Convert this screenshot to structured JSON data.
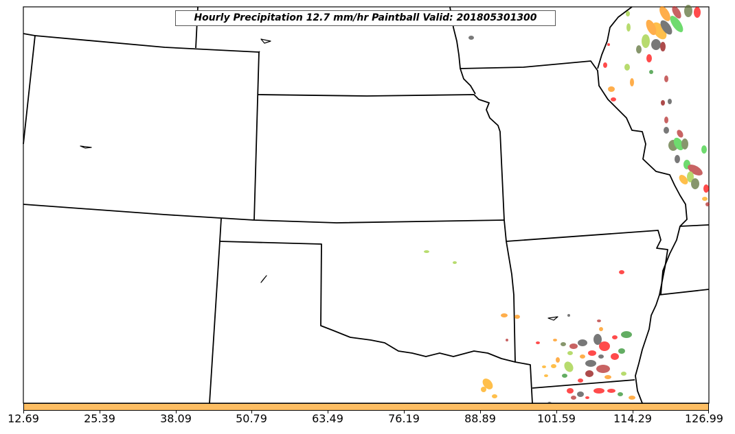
{
  "title": "Hourly Precipitation 12.7 mm/hr Paintball Valid: 201805301300",
  "colorbar": {
    "color": "#FDBE63",
    "ticks": [
      "12.69",
      "25.39",
      "38.09",
      "50.79",
      "63.49",
      "76.19",
      "88.89",
      "101.59",
      "114.29",
      "126.99"
    ]
  },
  "map": {
    "background": "#ffffff",
    "boundary_color": "#000000",
    "member_colors": [
      "#FF0000",
      "#B22222",
      "#FF8C00",
      "#FFA500",
      "#9ACD32",
      "#32CD32",
      "#228B22",
      "#404040",
      "#8B0000",
      "#556B2F"
    ]
  }
}
